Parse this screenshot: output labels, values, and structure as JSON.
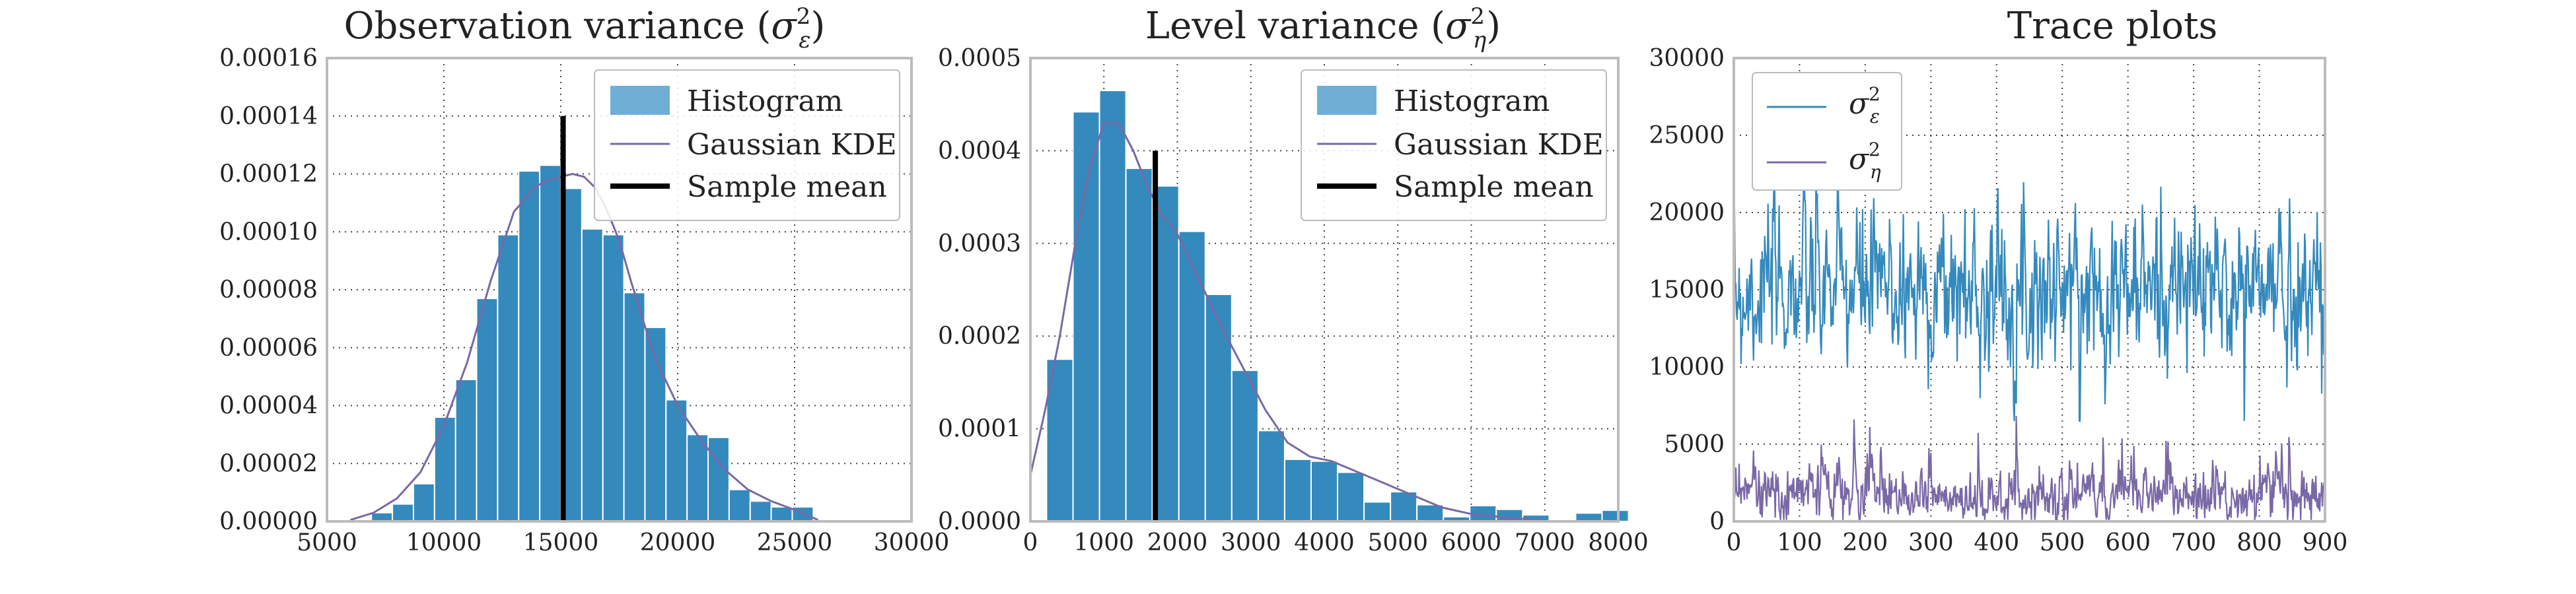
{
  "colors": {
    "blue": "#348ABD",
    "blue_light": "#6FAFD6",
    "purple": "#7A68A6",
    "black": "#000000",
    "frame": "#BCBCBC",
    "grid": "#444444"
  },
  "chart_data": [
    {
      "type": "bar",
      "title": "Observation variance (σ²_ε)",
      "title_main": "Observation variance (",
      "title_sym": "σ",
      "title_sup": "2",
      "title_sub": "ε",
      "title_close": ")",
      "xlim": [
        5000,
        30000
      ],
      "ylim": [
        0,
        0.00016
      ],
      "xticks": [
        5000,
        10000,
        15000,
        20000,
        25000,
        30000
      ],
      "xtick_labels": [
        "5000",
        "10000",
        "15000",
        "20000",
        "25000",
        "30000"
      ],
      "yticks": [
        0,
        2e-05,
        4e-05,
        6e-05,
        8e-05,
        0.0001,
        0.00012,
        0.00014,
        0.00016
      ],
      "ytick_labels": [
        "0.00000",
        "0.00002",
        "0.00004",
        "0.00006",
        "0.00008",
        "0.00010",
        "0.00012",
        "0.00014",
        "0.00016"
      ],
      "grid": true,
      "legend_position": "top-right",
      "legend": {
        "histogram": "Histogram",
        "kde": "Gaussian KDE",
        "mean": "Sample mean"
      },
      "histogram": {
        "bin_width": 900,
        "bin_starts": [
          6900,
          7800,
          8700,
          9600,
          10500,
          11400,
          12300,
          13200,
          14100,
          15000,
          15900,
          16800,
          17700,
          18600,
          19500,
          20400,
          21300,
          22200,
          23100,
          24000,
          24900
        ],
        "densities": [
          3e-06,
          6e-06,
          1.3e-05,
          3.6e-05,
          4.9e-05,
          7.7e-05,
          9.9e-05,
          0.000121,
          0.000123,
          0.000115,
          0.000101,
          9.9e-05,
          7.9e-05,
          6.7e-05,
          4.2e-05,
          3e-05,
          2.9e-05,
          1.1e-05,
          7e-06,
          5e-06,
          5e-06
        ]
      },
      "kde": {
        "x": [
          6000,
          7000,
          8000,
          9000,
          10000,
          11000,
          12000,
          13000,
          14000,
          14500,
          15000,
          15500,
          16000,
          16500,
          17000,
          17500,
          18000,
          19000,
          20000,
          21000,
          22000,
          23000,
          24000,
          25000,
          26000
        ],
        "y": [
          5e-07,
          3e-06,
          8e-06,
          1.7e-05,
          3.3e-05,
          5.5e-05,
          8.3e-05,
          0.000107,
          0.000116,
          0.000118,
          0.000119,
          0.00012,
          0.000119,
          0.000115,
          0.000107,
          9.7e-05,
          8.3e-05,
          5.7e-05,
          4e-05,
          2.8e-05,
          1.8e-05,
          1.1e-05,
          7e-06,
          4e-06,
          5e-07
        ]
      },
      "sample_mean": 15100,
      "mean_line_top": 0.00014
    },
    {
      "type": "bar",
      "title": "Level variance (σ²_η)",
      "title_main": "Level variance (",
      "title_sym": "σ",
      "title_sup": "2",
      "title_sub": "η",
      "title_close": ")",
      "xlim": [
        0,
        8000
      ],
      "ylim": [
        0,
        0.0005
      ],
      "xticks": [
        0,
        1000,
        2000,
        3000,
        4000,
        5000,
        6000,
        7000,
        8000
      ],
      "xtick_labels": [
        "0",
        "1000",
        "2000",
        "3000",
        "4000",
        "5000",
        "6000",
        "7000",
        "8000"
      ],
      "yticks": [
        0,
        0.0001,
        0.0002,
        0.0003,
        0.0004,
        0.0005
      ],
      "ytick_labels": [
        "0.0000",
        "0.0001",
        "0.0002",
        "0.0003",
        "0.0004",
        "0.0005"
      ],
      "grid": true,
      "legend_position": "top-right",
      "legend": {
        "histogram": "Histogram",
        "kde": "Gaussian KDE",
        "mean": "Sample mean"
      },
      "histogram": {
        "bin_width": 360,
        "bin_starts": [
          220,
          580,
          940,
          1300,
          1660,
          2020,
          2380,
          2740,
          3100,
          3460,
          3820,
          4180,
          4540,
          4900,
          5260,
          5620,
          5980,
          6340,
          6700,
          7060,
          7420,
          7780
        ],
        "densities": [
          0.000175,
          0.000442,
          0.000465,
          0.000381,
          0.000362,
          0.000313,
          0.000245,
          0.000163,
          9.8e-05,
          6.7e-05,
          6.5e-05,
          5.3e-05,
          2.1e-05,
          3.2e-05,
          1.8e-05,
          5e-06,
          1.7e-05,
          1.3e-05,
          7e-06,
          1e-06,
          9e-06,
          1.2e-05
        ]
      },
      "kde": {
        "x": [
          0,
          200,
          400,
          600,
          800,
          1000,
          1200,
          1400,
          1600,
          1800,
          2000,
          2300,
          2600,
          2900,
          3200,
          3500,
          3800,
          4100,
          4400,
          4700,
          5000,
          5300,
          5600,
          6000,
          6500,
          7000
        ],
        "y": [
          5e-05,
          0.00012,
          0.0002,
          0.000295,
          0.00038,
          0.00043,
          0.00043,
          0.0004,
          0.00036,
          0.00033,
          0.00031,
          0.00026,
          0.00021,
          0.000165,
          0.00012,
          8.5e-05,
          7e-05,
          6.5e-05,
          5.5e-05,
          4.5e-05,
          3.5e-05,
          2.5e-05,
          1.5e-05,
          8e-06,
          4e-06,
          1e-06
        ]
      },
      "sample_mean": 1700,
      "mean_line_top": 0.0004
    },
    {
      "type": "line",
      "title": "Trace plots",
      "xlim": [
        0,
        900
      ],
      "ylim": [
        0,
        30000
      ],
      "xticks": [
        0,
        100,
        200,
        300,
        400,
        500,
        600,
        700,
        800,
        900
      ],
      "xtick_labels": [
        "0",
        "100",
        "200",
        "300",
        "400",
        "500",
        "600",
        "700",
        "800",
        "900"
      ],
      "yticks": [
        0,
        5000,
        10000,
        15000,
        20000,
        25000,
        30000
      ],
      "ytick_labels": [
        "0",
        "5000",
        "10000",
        "15000",
        "20000",
        "25000",
        "30000"
      ],
      "grid": true,
      "legend_position": "top-left",
      "series": [
        {
          "name": "σ²_ε",
          "sym": "σ",
          "sup": "2",
          "sub": "ε",
          "color": "#348ABD",
          "mean": 15100,
          "spread": 2600,
          "min": 6500,
          "max": 25500,
          "seed": 7
        },
        {
          "name": "σ²_η",
          "sym": "σ",
          "sup": "2",
          "sub": "η",
          "color": "#7A68A6",
          "mean": 1700,
          "spread": 950,
          "min": 100,
          "max": 8500,
          "seed": 13
        }
      ],
      "n_samples": 900
    }
  ]
}
